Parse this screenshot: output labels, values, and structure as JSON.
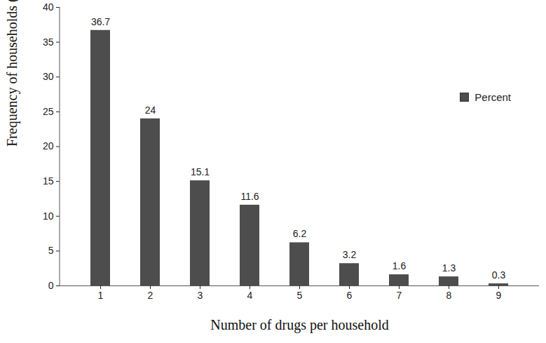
{
  "chart_data": {
    "type": "bar",
    "x_label": "Number of drugs per household",
    "y_label": "Frequency of households (%)",
    "categories": [
      "1",
      "2",
      "3",
      "4",
      "5",
      "6",
      "7",
      "8",
      "9"
    ],
    "series": [
      {
        "name": "Percent",
        "color": "#4d4d4d",
        "values": [
          36.7,
          24,
          15.1,
          11.6,
          6.2,
          3.2,
          1.6,
          1.3,
          0.3
        ]
      }
    ],
    "ylim": [
      0,
      40
    ],
    "yticks": [
      0,
      5,
      10,
      15,
      20,
      25,
      30,
      35,
      40
    ],
    "grid": false,
    "legend": "top-right",
    "data_labels": true
  }
}
